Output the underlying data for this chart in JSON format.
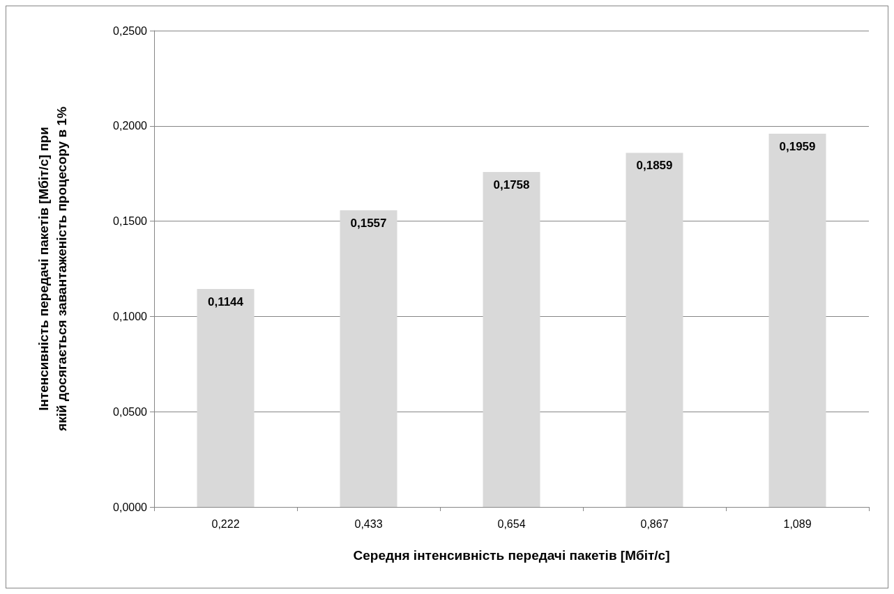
{
  "chart_data": {
    "type": "bar",
    "xlabel": "Середня інтенсивність передачі пакетів [Мбіт/с]",
    "ylabel": "Інтенсивність передачі пакетів [Мбіт/с] при якій досягається завантаженість процесору в 1%",
    "categories": [
      "0,222",
      "0,433",
      "0,654",
      "0,867",
      "1,089"
    ],
    "values": [
      0.1144,
      0.1557,
      0.1758,
      0.1859,
      0.1959
    ],
    "value_labels": [
      "0,1144",
      "0,1557",
      "0,1758",
      "0,1859",
      "0,1959"
    ],
    "color": "#d9d9d9",
    "ylim": [
      0,
      0.25
    ],
    "yticks": [
      {
        "value": 0,
        "label": "0,0000"
      },
      {
        "value": 0.05,
        "label": "0,0500"
      },
      {
        "value": 0.1,
        "label": "0,1000"
      },
      {
        "value": 0.15,
        "label": "0,1500"
      },
      {
        "value": 0.2,
        "label": "0,2000"
      },
      {
        "value": 0.25,
        "label": "0,2500"
      }
    ],
    "grid": "y"
  }
}
